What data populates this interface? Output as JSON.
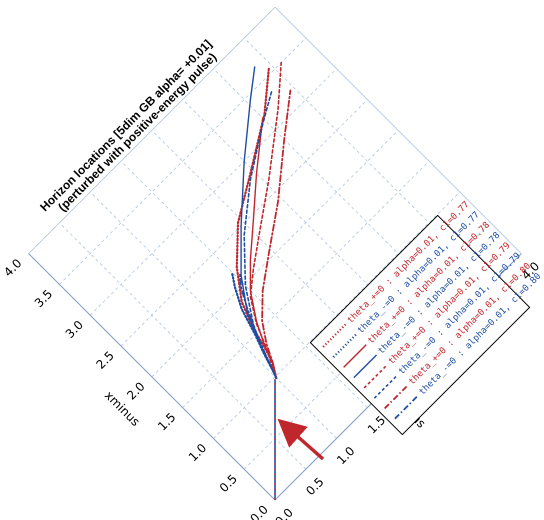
{
  "chart_data": {
    "type": "line",
    "title": [
      "Horizon locations [5dim GB alpha= +0.01]",
      "(perturbed with positive-energy pulse)"
    ],
    "xlabel": "xplus",
    "ylabel": "xminus",
    "xlim": [
      0,
      4
    ],
    "ylim": [
      0,
      4
    ],
    "ticks": [
      "0.0",
      "0.5",
      "1.0",
      "1.5",
      "2.0",
      "2.5",
      "3.0",
      "3.5",
      "4.0"
    ],
    "tick_values": [
      0,
      0.5,
      1,
      1.5,
      2,
      2.5,
      3,
      3.5,
      4
    ],
    "grid": true,
    "legend_position": "right",
    "annotation": "arrow at about (0.55, 0.30)",
    "colors": {
      "theta_plus": "#c0272d",
      "theta_minus": "#1f4ea3",
      "grid": "#aec4e0"
    },
    "series": [
      {
        "name": "theta_+=0 : alpha=0.01, c1=0.77",
        "color": "#c0272d",
        "style": "dotted",
        "points": [
          [
            1.0,
            0.98
          ],
          [
            1.1,
            1.14
          ],
          [
            1.16,
            1.34
          ],
          [
            1.22,
            1.58
          ],
          [
            1.34,
            1.88
          ],
          [
            1.58,
            2.2
          ],
          [
            1.95,
            2.55
          ],
          [
            2.45,
            2.85
          ],
          [
            3.05,
            3.22
          ],
          [
            3.45,
            3.55
          ]
        ]
      },
      {
        "name": "theta_-=0 : alpha=0.01, c1=0.77",
        "color": "#1f4ea3",
        "style": "dotted",
        "points": [
          [
            1.0,
            0.98
          ],
          [
            1.03,
            1.06
          ],
          [
            1.1,
            1.28
          ],
          [
            1.18,
            1.5
          ],
          [
            1.28,
            1.82
          ],
          [
            1.4,
            2.05
          ],
          [
            1.5,
            2.2
          ]
        ]
      },
      {
        "name": "theta_+=0 : alpha=0.01, c1=0.78",
        "color": "#c0272d",
        "style": "solid",
        "points": [
          [
            1.0,
            0.98
          ],
          [
            1.1,
            1.14
          ],
          [
            1.18,
            1.36
          ],
          [
            1.3,
            1.6
          ],
          [
            1.5,
            1.9
          ],
          [
            1.75,
            2.15
          ],
          [
            2.1,
            2.45
          ],
          [
            2.5,
            2.8
          ],
          [
            3.0,
            3.2
          ]
        ]
      },
      {
        "name": "theta_-=0 : alpha=0.01, c1=0.78",
        "color": "#1f4ea3",
        "style": "solid",
        "points": [
          [
            1.0,
            0.98
          ],
          [
            1.05,
            1.1
          ],
          [
            1.15,
            1.4
          ],
          [
            1.3,
            1.75
          ],
          [
            1.55,
            2.1
          ],
          [
            1.95,
            2.5
          ],
          [
            2.5,
            3.0
          ],
          [
            3.05,
            3.45
          ],
          [
            3.35,
            3.68
          ]
        ]
      },
      {
        "name": "theta_+=0 : alpha=0.01, c1=0.79",
        "color": "#c0272d",
        "style": "dashed",
        "points": [
          [
            1.0,
            0.98
          ],
          [
            1.08,
            1.14
          ],
          [
            1.18,
            1.34
          ],
          [
            1.28,
            1.58
          ],
          [
            1.45,
            1.85
          ],
          [
            1.7,
            2.05
          ],
          [
            2.05,
            2.3
          ],
          [
            2.55,
            2.65
          ],
          [
            3.2,
            3.15
          ],
          [
            3.6,
            3.5
          ]
        ]
      },
      {
        "name": "theta_-=0 : alpha=0.01, c1=0.79",
        "color": "#1f4ea3",
        "style": "dashed",
        "points": [
          [
            1.0,
            0.98
          ],
          [
            1.03,
            1.06
          ],
          [
            1.1,
            1.28
          ],
          [
            1.25,
            1.6
          ],
          [
            1.5,
            1.98
          ],
          [
            1.9,
            2.4
          ],
          [
            2.4,
            2.8
          ],
          [
            2.95,
            3.15
          ],
          [
            3.3,
            3.35
          ]
        ]
      },
      {
        "name": "theta_+=0 : alpha=0.01, c1=0.80",
        "color": "#c0272d",
        "style": "dashdot",
        "points": [
          [
            1.0,
            0.98
          ],
          [
            1.1,
            1.14
          ],
          [
            1.2,
            1.34
          ],
          [
            1.35,
            1.56
          ],
          [
            1.6,
            1.8
          ],
          [
            1.95,
            2.05
          ],
          [
            2.45,
            2.4
          ],
          [
            3.0,
            2.85
          ],
          [
            3.45,
            3.2
          ]
        ]
      },
      {
        "name": "theta_-=0 : alpha=0.01, c1=0.80",
        "color": "#1f4ea3",
        "style": "dashdot",
        "points": [
          [
            1.0,
            0.98
          ],
          [
            1.03,
            1.06
          ],
          [
            1.12,
            1.3
          ],
          [
            1.22,
            1.55
          ],
          [
            1.34,
            1.8
          ],
          [
            1.45,
            2.0
          ],
          [
            1.55,
            2.12
          ]
        ]
      }
    ],
    "center_line": [
      [
        0,
        0
      ],
      [
        0.98,
        0.98
      ]
    ]
  }
}
